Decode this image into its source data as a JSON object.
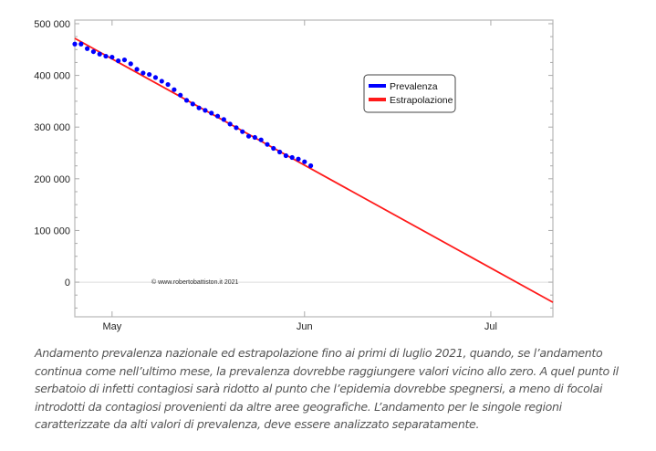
{
  "chart_data": {
    "type": "scatter",
    "title": "",
    "xlabel": "",
    "ylabel": "",
    "xlim": [
      "2021-04-25",
      "2021-07-11"
    ],
    "ylim": [
      -67000,
      507000
    ],
    "grid": "zero line only",
    "y_ticks": [
      0,
      100000,
      200000,
      300000,
      400000,
      500000
    ],
    "y_tick_labels": [
      "0",
      "100 000",
      "200 000",
      "300 000",
      "400 000",
      "500 000"
    ],
    "x_ticks": [
      "2021-05-01",
      "2021-06-01",
      "2021-07-01"
    ],
    "x_tick_labels": [
      "May",
      "Jun",
      "Jul"
    ],
    "legend_position": "upper-right-center",
    "series": [
      {
        "name": "Prevalenza",
        "kind": "points",
        "color": "#0000ff",
        "start_date": "2021-04-25",
        "step_days": 1,
        "values": [
          460600,
          460600,
          451800,
          445900,
          441200,
          437100,
          435300,
          428200,
          430000,
          422400,
          411800,
          404700,
          401800,
          395900,
          388800,
          382400,
          372400,
          361800,
          351800,
          344700,
          337100,
          332400,
          327100,
          321200,
          314700,
          305900,
          298800,
          291200,
          282400,
          280000,
          275300,
          266500,
          258800,
          251800,
          244700,
          241200,
          238200,
          232900,
          225300
        ]
      },
      {
        "name": "Estrapolazione",
        "kind": "line",
        "color": "#ff1a1a",
        "x": [
          "2021-04-25",
          "2021-07-11"
        ],
        "values": [
          471700,
          -39000
        ]
      }
    ],
    "annotation": "© www.robertobattiston.it 2021"
  },
  "caption": [
    "Andamento prevalenza nazionale ed estrapolazione fino ai primi di luglio 2021, quando, se l’andamento",
    "continua come nell’ultimo mese, la prevalenza dovrebbe raggiungere valori vicino allo zero. A quel punto il",
    "serbatoio di infetti contagiosi sarà ridotto al punto che l’epidemia dovrebbe spegnersi, a meno di focolai",
    "introdotti da contagiosi provenienti da altre aree geografiche. L’andamento per le singole regioni",
    "caratterizzate da alti valori di prevalenza, deve essere analizzato separatamente."
  ]
}
